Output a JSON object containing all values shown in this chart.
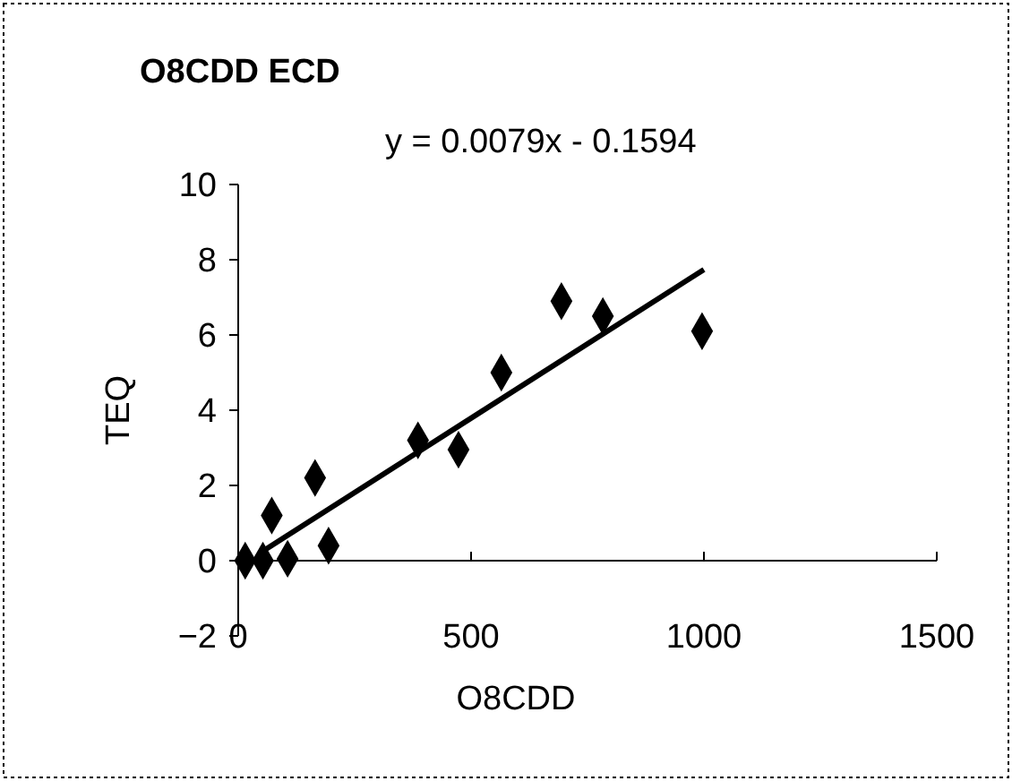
{
  "chart_data": {
    "type": "scatter",
    "title": "O8CDD ECD",
    "xlabel": "O8CDD",
    "ylabel": "TEQ",
    "annotations": [
      "y = 0.0079x - 0.1594"
    ],
    "xlim": [
      0,
      1500
    ],
    "xticks": [
      0,
      500,
      1000,
      1500
    ],
    "ylim": [
      -2,
      10
    ],
    "yticks": [
      -2,
      0,
      2,
      4,
      6,
      8,
      10
    ],
    "grid": false,
    "marker": "diamond",
    "series": [
      {
        "color": "#000000",
        "x": [
          15,
          53,
          72,
          106,
          165,
          194,
          386,
          473,
          565,
          694,
          783,
          996
        ],
        "values": [
          0,
          0,
          1.2,
          0.05,
          2.2,
          0.4,
          3.2,
          2.95,
          5.0,
          6.9,
          6.5,
          6.1
        ]
      },
      {
        "type": "line",
        "color": "#000000",
        "marker": "none",
        "line_style": "solid",
        "x": [
          60,
          1000
        ],
        "values": [
          0.31,
          7.74
        ]
      }
    ]
  }
}
